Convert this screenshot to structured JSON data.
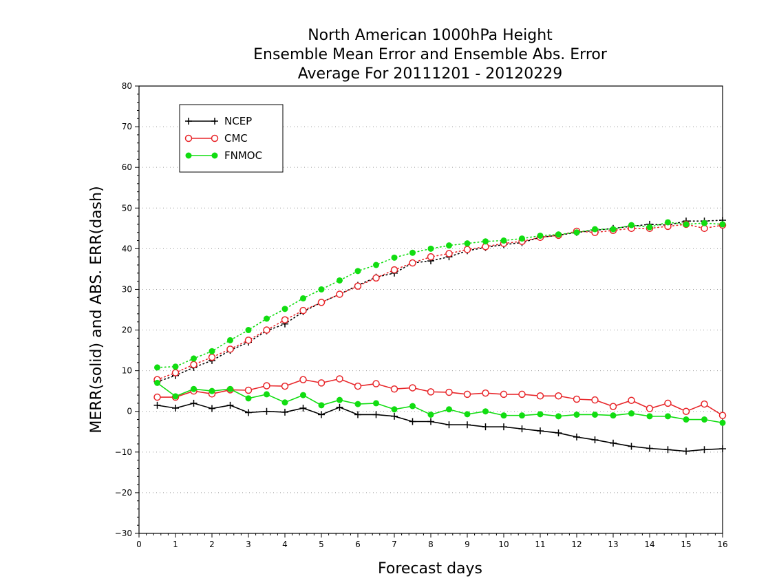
{
  "chart_data": {
    "type": "line",
    "title_lines": [
      "North American 1000hPa Height",
      "Ensemble Mean Error and Ensemble Abs. Error",
      "Average For 20111201 - 20120229"
    ],
    "xlabel": "Forecast days",
    "ylabel": "MERR(solid) and ABS. ERR(dash)",
    "xlim": [
      0,
      16
    ],
    "ylim": [
      -30,
      80
    ],
    "xticks": [
      "0",
      "1",
      "2",
      "3",
      "4",
      "5",
      "6",
      "7",
      "8",
      "9",
      "10",
      "11",
      "12",
      "13",
      "14",
      "15",
      "16"
    ],
    "yticks": [
      "−30",
      "−20",
      "−10",
      "0",
      "10",
      "20",
      "30",
      "40",
      "50",
      "60",
      "70",
      "80"
    ],
    "grid": "horizontal dotted",
    "legend_position": "top-left",
    "x": [
      0.5,
      1.0,
      1.5,
      2.0,
      2.5,
      3.0,
      3.5,
      4.0,
      4.5,
      5.0,
      5.5,
      6.0,
      6.5,
      7.0,
      7.5,
      8.0,
      8.5,
      9.0,
      9.5,
      10.0,
      10.5,
      11.0,
      11.5,
      12.0,
      12.5,
      13.0,
      13.5,
      14.0,
      14.5,
      15.0,
      15.5,
      16.0
    ],
    "series": [
      {
        "name": "NCEP",
        "color": "#000000",
        "marker": "plus",
        "merr": [
          1.5,
          0.8,
          2.0,
          0.7,
          1.5,
          -0.3,
          0.0,
          -0.2,
          0.8,
          -0.8,
          1.0,
          -0.8,
          -0.8,
          -1.2,
          -2.5,
          -2.5,
          -3.3,
          -3.3,
          -3.8,
          -3.8,
          -4.3,
          -4.8,
          -5.3,
          -6.3,
          -7.0,
          -7.8,
          -8.6,
          -9.1,
          -9.4,
          -9.8,
          -9.4,
          -9.2
        ],
        "abs_err": [
          7.3,
          8.8,
          10.8,
          12.5,
          15.0,
          17.0,
          19.8,
          21.5,
          24.5,
          26.8,
          28.8,
          31.0,
          33.0,
          34.0,
          36.5,
          37.0,
          38.0,
          39.5,
          40.3,
          41.0,
          41.5,
          42.8,
          43.3,
          44.0,
          44.5,
          45.0,
          45.5,
          46.0,
          45.8,
          46.8,
          46.8,
          47.0
        ]
      },
      {
        "name": "CMC",
        "color": "#e8262a",
        "marker": "open-circle",
        "merr": [
          3.5,
          3.5,
          5.0,
          4.3,
          5.3,
          5.2,
          6.3,
          6.2,
          7.8,
          7.0,
          8.0,
          6.2,
          6.8,
          5.5,
          5.8,
          4.8,
          4.7,
          4.2,
          4.5,
          4.2,
          4.2,
          3.8,
          3.8,
          3.0,
          2.8,
          1.2,
          2.7,
          0.7,
          2.0,
          0.0,
          1.8,
          -1.0
        ],
        "abs_err": [
          7.8,
          9.5,
          11.5,
          13.3,
          15.3,
          17.5,
          20.0,
          22.5,
          24.8,
          26.8,
          28.8,
          30.8,
          32.8,
          34.8,
          36.5,
          38.0,
          38.8,
          39.8,
          40.5,
          41.3,
          41.8,
          42.8,
          43.3,
          44.3,
          44.0,
          44.5,
          45.0,
          45.0,
          45.5,
          46.0,
          45.0,
          45.8
        ]
      },
      {
        "name": "FNMOC",
        "color": "#11dd11",
        "marker": "filled-circle",
        "merr": [
          7.0,
          3.7,
          5.5,
          5.0,
          5.5,
          3.2,
          4.2,
          2.2,
          4.0,
          1.5,
          2.8,
          1.8,
          2.0,
          0.5,
          1.3,
          -0.8,
          0.5,
          -0.7,
          0.0,
          -1.0,
          -1.0,
          -0.7,
          -1.2,
          -0.8,
          -0.8,
          -1.0,
          -0.5,
          -1.2,
          -1.2,
          -2.0,
          -2.0,
          -2.8
        ],
        "abs_err": [
          10.8,
          11.0,
          13.0,
          14.8,
          17.5,
          20.0,
          22.8,
          25.2,
          27.8,
          30.0,
          32.2,
          34.5,
          36.0,
          37.8,
          39.0,
          40.0,
          40.8,
          41.3,
          41.8,
          42.0,
          42.5,
          43.2,
          43.5,
          44.0,
          44.8,
          44.8,
          45.8,
          45.3,
          46.5,
          46.0,
          46.3,
          46.0
        ]
      }
    ]
  }
}
